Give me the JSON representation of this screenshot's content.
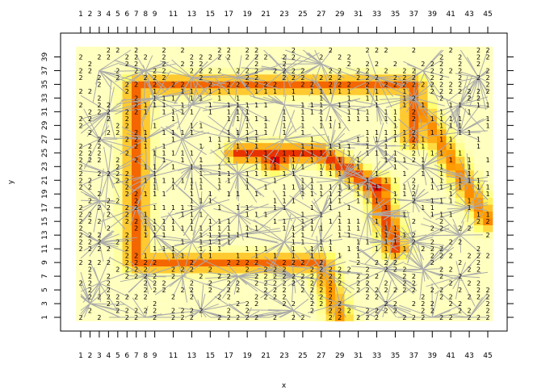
{
  "chart_data": {
    "type": "heatmap",
    "xlabel": "x",
    "ylabel": "y",
    "x_ticks_bottom": [
      "1",
      "2",
      "3",
      "4",
      "5",
      "6",
      "7",
      "8",
      "9",
      "11",
      "13",
      "15",
      "17",
      "19",
      "21",
      "23",
      "25",
      "27",
      "29",
      "31",
      "33",
      "35",
      "37",
      "39",
      "41",
      "43",
      "45"
    ],
    "x_ticks_top": [
      "1",
      "2",
      "3",
      "4",
      "5",
      "6",
      "7",
      "8",
      "9",
      "11",
      "13",
      "15",
      "17",
      "19",
      "21",
      "23",
      "25",
      "27",
      "29",
      "31",
      "33",
      "35",
      "37",
      "39",
      "41",
      "43",
      "45"
    ],
    "y_ticks": [
      "1",
      "3",
      "5",
      "7",
      "9",
      "11",
      "13",
      "15",
      "17",
      "19",
      "21",
      "23",
      "25",
      "27",
      "29",
      "31",
      "33",
      "35",
      "37",
      "39"
    ],
    "xlim": [
      1,
      45
    ],
    "ylim": [
      1,
      40
    ],
    "grid": false,
    "colors": {
      "low": "#ffffcc",
      "mid": "#ffff66",
      "high": "#ff9900",
      "peak": "#dd0000",
      "edges": "#aaaaaa"
    },
    "cluster_labels": [
      "1",
      "2"
    ],
    "ring": {
      "x_min": 7,
      "x_max": 37,
      "y_min": 9,
      "y_max": 35
    },
    "inner_band": {
      "x_min": 18,
      "x_max": 35,
      "y_min": 11,
      "y_max": 25,
      "peak_points": [
        [
          22,
          24
        ],
        [
          33,
          20
        ]
      ]
    },
    "outer_right_band": {
      "x_min": 37,
      "x_max": 45,
      "y_min": 15,
      "y_max": 33
    }
  }
}
